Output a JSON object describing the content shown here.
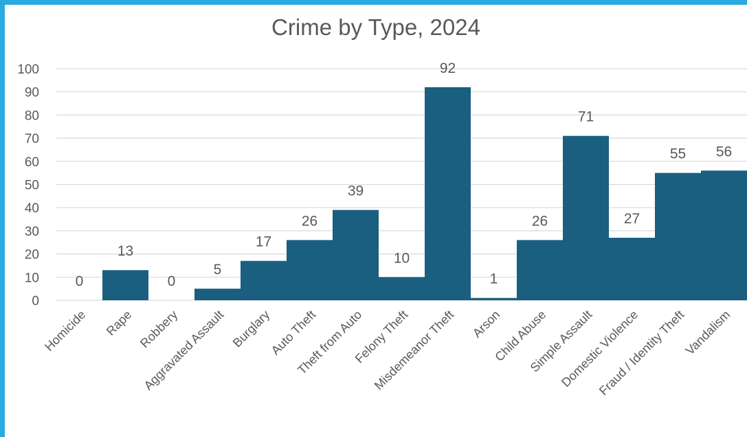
{
  "chart_data": {
    "type": "bar",
    "title": "Crime by Type, 2024",
    "xlabel": "",
    "ylabel": "",
    "ylim": [
      0,
      100
    ],
    "yticks": [
      0,
      10,
      20,
      30,
      40,
      50,
      60,
      70,
      80,
      90,
      100
    ],
    "grid": true,
    "legend": "none",
    "bar_color": "#1a5f80",
    "categories": [
      "Homicide",
      "Rape",
      "Robbery",
      "Aggravated Assault",
      "Burglary",
      "Auto Theft",
      "Theft from Auto",
      "Felony Theft",
      "Misdemeanor Theft",
      "Arson",
      "Child Abuse",
      "Simple Assault",
      "Domestic Violence",
      "Fraud / Identity Theft",
      "Vandalism"
    ],
    "values": [
      0,
      13,
      0,
      5,
      17,
      26,
      39,
      10,
      92,
      1,
      26,
      71,
      27,
      55,
      56
    ]
  }
}
